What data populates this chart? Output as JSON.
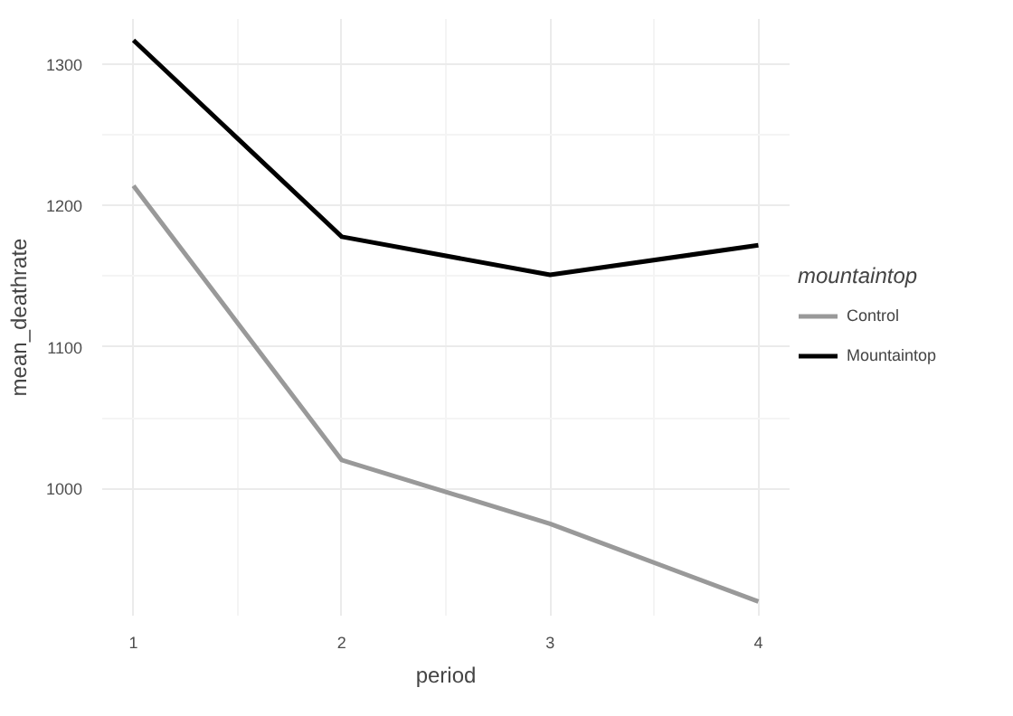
{
  "chart_data": {
    "type": "line",
    "xlabel": "period",
    "ylabel": "mean_deathrate",
    "legend_title": "mountaintop",
    "x": [
      1,
      2,
      3,
      4
    ],
    "series": [
      {
        "name": "Control",
        "color": "#999999",
        "values": [
          1214,
          1020,
          975,
          920
        ]
      },
      {
        "name": "Mountaintop",
        "color": "#000000",
        "values": [
          1317,
          1178,
          1151,
          1172
        ]
      }
    ],
    "xlim": [
      0.85,
      4.15
    ],
    "xticks": [
      1,
      2,
      3,
      4
    ],
    "ylim": [
      910,
      1332
    ],
    "yticks": [
      1000,
      1100,
      1200,
      1300
    ],
    "grid": true,
    "legend": "right",
    "line_style": "solid",
    "marker": "none"
  }
}
